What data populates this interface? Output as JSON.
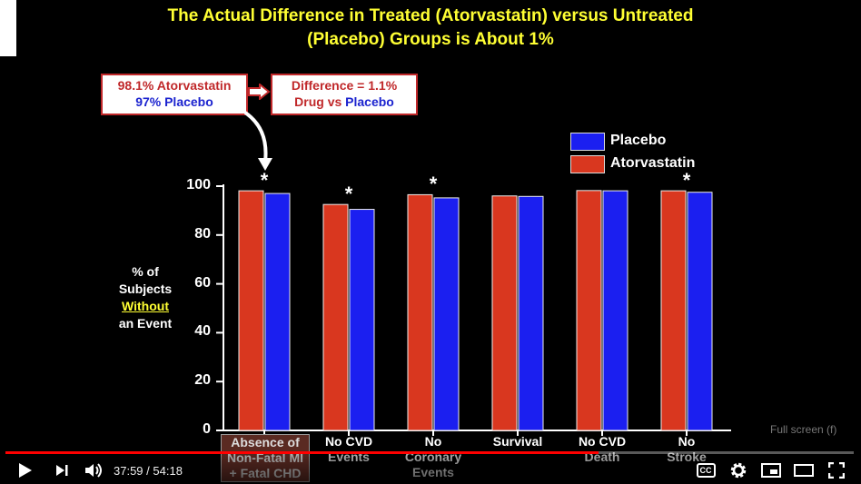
{
  "slide": {
    "title_line1": "The Actual Difference in Treated (Atorvastatin) versus Untreated",
    "title_line2": "(Placebo) Groups is About 1%",
    "box1_line1": "98.1% Atorvastatin",
    "box1_line2": "97% Placebo",
    "box2_line1": "Difference = 1.1%",
    "box2_prefix": "Drug vs",
    "box2_suffix": "Placebo",
    "ylabel_line1": "% of",
    "ylabel_line2": "Subjects",
    "ylabel_line3": "Without",
    "ylabel_line4": "an Event"
  },
  "chart_data": {
    "type": "bar",
    "categories": [
      "Absence of Non-Fatal MI + Fatal CHD",
      "No CVD Events",
      "No Coronary Events",
      "Survival",
      "No CVD Death",
      "No Stroke"
    ],
    "category_lines": [
      [
        "Absence of",
        "Non-Fatal MI",
        "+ Fatal CHD"
      ],
      [
        "No CVD",
        "Events"
      ],
      [
        "No",
        "Coronary",
        "Events"
      ],
      [
        "Survival"
      ],
      [
        "No CVD",
        "Death"
      ],
      [
        "No",
        "Stroke"
      ]
    ],
    "series": [
      {
        "name": "Atorvastatin",
        "color": "#d9371f",
        "values": [
          98.1,
          92.5,
          96.5,
          96.0,
          98.2,
          98.1
        ]
      },
      {
        "name": "Placebo",
        "color": "#1b1ff0",
        "values": [
          97.0,
          90.5,
          95.2,
          95.8,
          98.1,
          97.5
        ]
      }
    ],
    "significant": [
      true,
      true,
      true,
      false,
      false,
      true
    ],
    "significance_marker": "*",
    "ylim": [
      0,
      100
    ],
    "yticks": [
      "0",
      "20",
      "40",
      "60",
      "80",
      "100"
    ],
    "legend": [
      "Placebo",
      "Atorvastatin"
    ],
    "legend_position": "top-right",
    "grid": false
  },
  "player": {
    "time_current": "37:59",
    "time_separator": " / ",
    "time_total": "54:18",
    "progress": 0.6995,
    "fullscreen_tooltip": "Full screen (f)",
    "cc_label": "CC"
  }
}
